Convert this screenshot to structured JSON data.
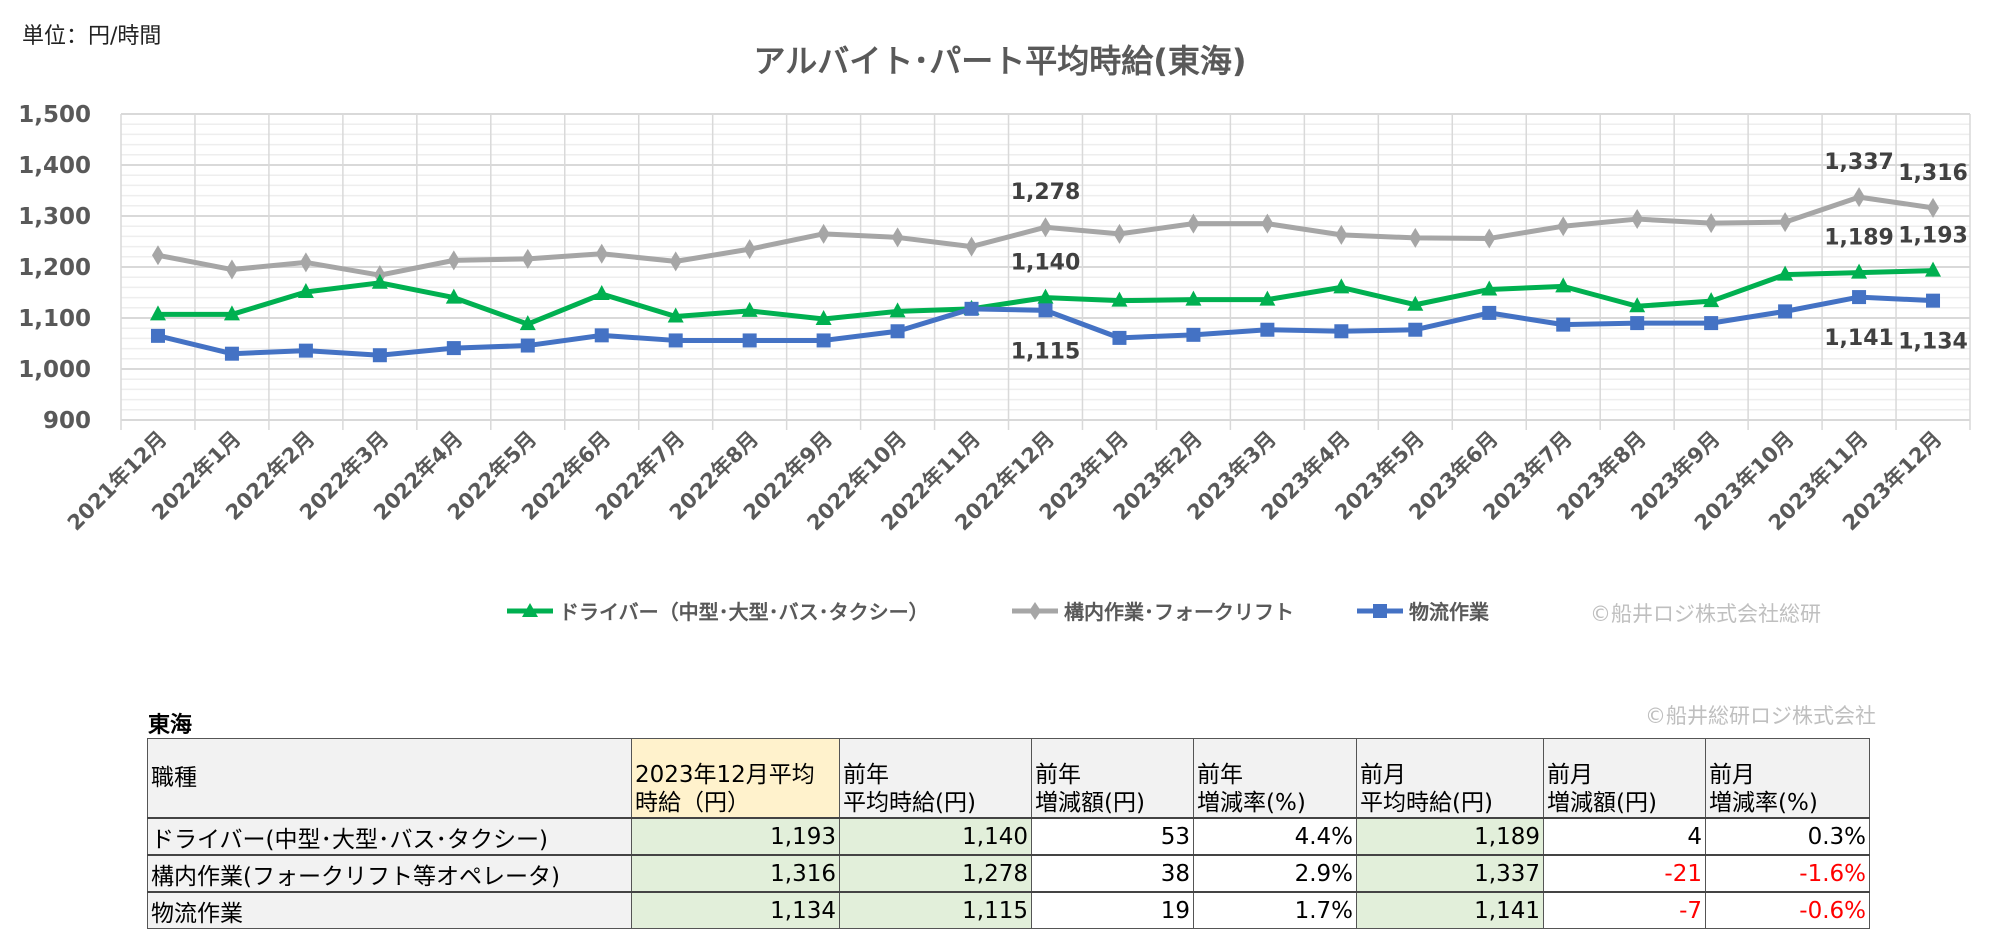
{
  "unit_label": "単位：円/時間",
  "chart_data": {
    "type": "line",
    "title": "アルバイト･パート平均時給(東海)",
    "xlabel": "",
    "ylabel": "",
    "ylim": [
      900,
      1500
    ],
    "yticks": [
      "900",
      "1,000",
      "1,100",
      "1,200",
      "1,300",
      "1,400",
      "1,500"
    ],
    "grid": true,
    "legend_position": "bottom",
    "categories": [
      "2021年12月",
      "2022年1月",
      "2022年2月",
      "2022年3月",
      "2022年4月",
      "2022年5月",
      "2022年6月",
      "2022年7月",
      "2022年8月",
      "2022年9月",
      "2022年10月",
      "2022年11月",
      "2022年12月",
      "2023年1月",
      "2023年2月",
      "2023年3月",
      "2023年4月",
      "2023年5月",
      "2023年6月",
      "2023年7月",
      "2023年8月",
      "2023年9月",
      "2023年10月",
      "2023年11月",
      "2023年12月"
    ],
    "series": [
      {
        "name": "ドライバー（中型･大型･バス･タクシー）",
        "color": "#00b050",
        "marker": "triangle",
        "values": [
          1107,
          1107,
          1151,
          1169,
          1140,
          1088,
          1147,
          1103,
          1114,
          1098,
          1113,
          1118,
          1140,
          1134,
          1136,
          1136,
          1160,
          1126,
          1156,
          1162,
          1123,
          1133,
          1185,
          1189,
          1193
        ]
      },
      {
        "name": "構内作業･フォークリフト",
        "color": "#a6a6a6",
        "marker": "diamond",
        "values": [
          1223,
          1195,
          1209,
          1184,
          1213,
          1216,
          1226,
          1211,
          1235,
          1265,
          1258,
          1240,
          1278,
          1265,
          1285,
          1285,
          1263,
          1257,
          1256,
          1280,
          1294,
          1286,
          1288,
          1337,
          1316
        ]
      },
      {
        "name": "物流作業",
        "color": "#4472c4",
        "marker": "square",
        "values": [
          1065,
          1030,
          1036,
          1027,
          1041,
          1046,
          1066,
          1056,
          1056,
          1056,
          1074,
          1118,
          1115,
          1061,
          1067,
          1077,
          1074,
          1077,
          1110,
          1087,
          1090,
          1090,
          1113,
          1141,
          1134
        ]
      }
    ],
    "data_labels": [
      {
        "series": 1,
        "index": 12,
        "text": "1,278"
      },
      {
        "series": 0,
        "index": 12,
        "text": "1,140"
      },
      {
        "series": 2,
        "index": 12,
        "text": "1,115"
      },
      {
        "series": 1,
        "index": 23,
        "text": "1,337"
      },
      {
        "series": 0,
        "index": 23,
        "text": "1,189"
      },
      {
        "series": 2,
        "index": 23,
        "text": "1,141"
      },
      {
        "series": 1,
        "index": 24,
        "text": "1,316"
      },
      {
        "series": 0,
        "index": 24,
        "text": "1,193"
      },
      {
        "series": 2,
        "index": 24,
        "text": "1,134"
      }
    ]
  },
  "legend_copyright": "©船井ロジ株式会社総研",
  "table": {
    "region": "東海",
    "copyright": "©船井総研ロジ株式会社",
    "headers": [
      "職種",
      "2023年12月平均時給（円）",
      "前年平均時給(円)",
      "前年増減額(円)",
      "前年増減率(%)",
      "前月平均時給(円)",
      "前月増減額(円)",
      "前月増減率(%)"
    ],
    "header_lines": [
      [
        "職種"
      ],
      [
        "2023年12月平均",
        "時給（円）"
      ],
      [
        "前年",
        "平均時給(円)"
      ],
      [
        "前年",
        "増減額(円)"
      ],
      [
        "前年",
        "増減率(%)"
      ],
      [
        "前月",
        "平均時給(円)"
      ],
      [
        "前月",
        "増減額(円)"
      ],
      [
        "前月",
        "増減率(%)"
      ]
    ],
    "rows": [
      [
        "ドライバー(中型･大型･バス･タクシー)",
        "1,193",
        "1,140",
        "53",
        "4.4%",
        "1,189",
        "4",
        "0.3%"
      ],
      [
        "構内作業(フォークリフト等オペレータ)",
        "1,316",
        "1,278",
        "38",
        "2.9%",
        "1,337",
        "-21",
        "-1.6%"
      ],
      [
        "物流作業",
        "1,134",
        "1,115",
        "19",
        "1.7%",
        "1,141",
        "-7",
        "-0.6%"
      ]
    ],
    "negative_color": "#ff0000",
    "highlight_header_color": "#fff2cc",
    "highlight_cell_color": "#e2efda"
  }
}
